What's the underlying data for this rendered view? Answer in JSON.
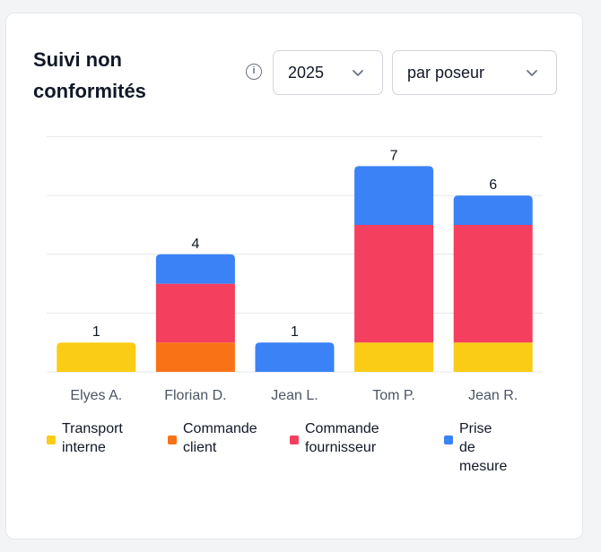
{
  "header": {
    "title": "Suivi non conformités",
    "info_icon": "info-icon",
    "year_select": {
      "value": "2025",
      "icon": "chevron-down-icon"
    },
    "group_select": {
      "value": "par poseur",
      "icon": "chevron-down-icon"
    }
  },
  "colors": {
    "transport_interne": "#facc15",
    "commande_client": "#f97316",
    "commande_fournisseur": "#f43f5e",
    "prise_de_mesure": "#3b82f6",
    "grid": "#e5e7eb",
    "tick_text": "#4b5563",
    "label_text": "#111827"
  },
  "chart_data": {
    "type": "bar",
    "stacked": true,
    "categories": [
      "Elyes A.",
      "Florian D.",
      "Jean L.",
      "Tom P.",
      "Jean R."
    ],
    "series": [
      {
        "name": "Transport interne",
        "color": "#facc15",
        "values": [
          1,
          0,
          0,
          1,
          1
        ]
      },
      {
        "name": "Commande client",
        "color": "#f97316",
        "values": [
          0,
          1,
          0,
          0,
          0
        ]
      },
      {
        "name": "Commande fournisseur",
        "color": "#f43f5e",
        "values": [
          0,
          2,
          0,
          4,
          4
        ]
      },
      {
        "name": "Prise de mesure",
        "color": "#3b82f6",
        "values": [
          0,
          1,
          1,
          2,
          1
        ]
      }
    ],
    "totals": [
      1,
      4,
      1,
      7,
      6
    ],
    "ylim": [
      0,
      8
    ],
    "grid": true,
    "legend_position": "bottom"
  }
}
